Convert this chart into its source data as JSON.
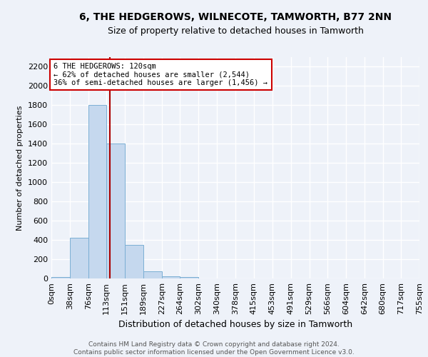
{
  "title": "6, THE HEDGEROWS, WILNECOTE, TAMWORTH, B77 2NN",
  "subtitle": "Size of property relative to detached houses in Tamworth",
  "xlabel": "Distribution of detached houses by size in Tamworth",
  "ylabel": "Number of detached properties",
  "bar_edges": [
    0,
    38,
    76,
    113,
    151,
    189,
    227,
    264,
    302,
    340,
    378,
    415,
    453,
    491,
    529,
    566,
    604,
    642,
    680,
    717,
    755
  ],
  "bar_heights": [
    15,
    420,
    1800,
    1400,
    350,
    75,
    25,
    15,
    0,
    0,
    0,
    0,
    0,
    0,
    0,
    0,
    0,
    0,
    0,
    0
  ],
  "bar_color": "#c5d8ee",
  "bar_edge_color": "#7bafd4",
  "property_size": 120,
  "red_line_color": "#aa0000",
  "annotation_text": "6 THE HEDGEROWS: 120sqm\n← 62% of detached houses are smaller (2,544)\n36% of semi-detached houses are larger (1,456) →",
  "annotation_box_color": "#ffffff",
  "annotation_box_edge": "#cc0000",
  "ylim": [
    0,
    2300
  ],
  "yticks": [
    0,
    200,
    400,
    600,
    800,
    1000,
    1200,
    1400,
    1600,
    1800,
    2000,
    2200
  ],
  "xtick_labels": [
    "0sqm",
    "38sqm",
    "76sqm",
    "113sqm",
    "151sqm",
    "189sqm",
    "227sqm",
    "264sqm",
    "302sqm",
    "340sqm",
    "378sqm",
    "415sqm",
    "453sqm",
    "491sqm",
    "529sqm",
    "566sqm",
    "604sqm",
    "642sqm",
    "680sqm",
    "717sqm",
    "755sqm"
  ],
  "footer_line1": "Contains HM Land Registry data © Crown copyright and database right 2024.",
  "footer_line2": "Contains public sector information licensed under the Open Government Licence v3.0.",
  "background_color": "#eef2f9",
  "grid_color": "#ffffff",
  "title_fontsize": 10,
  "subtitle_fontsize": 9,
  "ylabel_fontsize": 8,
  "xlabel_fontsize": 9
}
